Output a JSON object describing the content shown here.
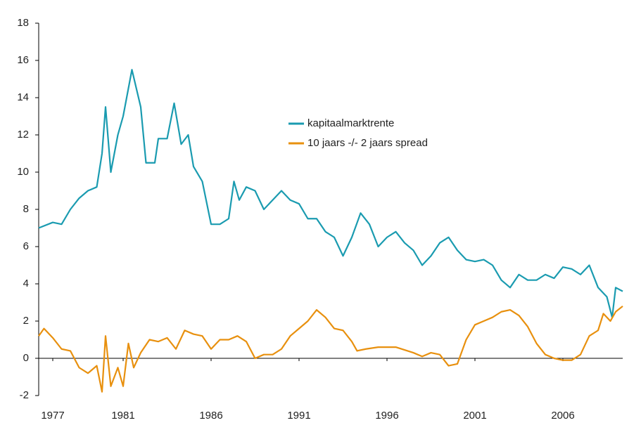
{
  "chart_data": {
    "type": "line",
    "xlim": [
      1976.2,
      2009.4
    ],
    "xticks": [
      1977,
      1981,
      1986,
      1991,
      1996,
      2001,
      2006
    ],
    "ylim": [
      -2,
      18
    ],
    "yticks": [
      -2,
      0,
      2,
      4,
      6,
      8,
      10,
      12,
      14,
      16,
      18
    ],
    "legend": "center",
    "series": [
      {
        "name": "kapitaalmarktrente",
        "color": "#1a9bb0",
        "x": [
          1976.2,
          1977,
          1977.5,
          1978,
          1978.5,
          1979,
          1979.5,
          1979.8,
          1980,
          1980.3,
          1980.7,
          1981,
          1981.5,
          1982,
          1982.3,
          1982.8,
          1983,
          1983.5,
          1983.9,
          1984.3,
          1984.7,
          1985,
          1985.5,
          1986,
          1986.5,
          1987,
          1987.3,
          1987.6,
          1988,
          1988.5,
          1989,
          1989.5,
          1990,
          1990.5,
          1991,
          1991.5,
          1992,
          1992.5,
          1993,
          1993.5,
          1994,
          1994.5,
          1995,
          1995.5,
          1996,
          1996.5,
          1997,
          1997.5,
          1998,
          1998.5,
          1999,
          1999.5,
          2000,
          2000.5,
          2001,
          2001.5,
          2002,
          2002.5,
          2003,
          2003.5,
          2004,
          2004.5,
          2005,
          2005.5,
          2006,
          2006.5,
          2007,
          2007.5,
          2008,
          2008.5,
          2008.8,
          2009,
          2009.4
        ],
        "values": [
          7.0,
          7.3,
          7.2,
          8.0,
          8.6,
          9.0,
          9.2,
          11,
          13.5,
          10,
          12,
          13,
          15.5,
          13.5,
          10.5,
          10.5,
          11.8,
          11.8,
          13.7,
          11.5,
          12,
          10.3,
          9.5,
          7.2,
          7.2,
          7.5,
          9.5,
          8.5,
          9.2,
          9,
          8,
          8.5,
          9,
          8.5,
          8.3,
          7.5,
          7.5,
          6.8,
          6.5,
          5.5,
          6.5,
          7.8,
          7.2,
          6,
          6.5,
          6.8,
          6.2,
          5.8,
          5.0,
          5.5,
          6.2,
          6.5,
          5.8,
          5.3,
          5.2,
          5.3,
          5.0,
          4.2,
          3.8,
          4.5,
          4.2,
          4.2,
          4.5,
          4.3,
          4.9,
          4.8,
          4.5,
          5.0,
          3.8,
          3.3,
          2.2,
          3.8,
          3.6
        ]
      },
      {
        "name": "10 jaars -/- 2 jaars spread",
        "color": "#e8900e",
        "x": [
          1976.2,
          1976.5,
          1977,
          1977.5,
          1978,
          1978.5,
          1979,
          1979.5,
          1979.8,
          1980,
          1980.3,
          1980.7,
          1981,
          1981.3,
          1981.6,
          1982,
          1982.5,
          1983,
          1983.5,
          1984,
          1984.5,
          1985,
          1985.5,
          1986,
          1986.5,
          1987,
          1987.5,
          1988,
          1988.5,
          1989,
          1989.5,
          1990,
          1990.5,
          1991,
          1991.5,
          1992,
          1992.5,
          1993,
          1993.5,
          1994,
          1994.3,
          1994.8,
          1995.5,
          1996.5,
          1997.5,
          1998,
          1998.5,
          1999,
          1999.5,
          2000,
          2000.5,
          2001,
          2001.5,
          2002,
          2002.5,
          2003,
          2003.5,
          2004,
          2004.5,
          2005,
          2005.5,
          2006,
          2006.5,
          2007,
          2007.5,
          2008,
          2008.3,
          2008.7,
          2009,
          2009.4
        ],
        "values": [
          1.2,
          1.6,
          1.1,
          0.5,
          0.4,
          -0.5,
          -0.8,
          -0.4,
          -1.8,
          1.2,
          -1.5,
          -0.5,
          -1.5,
          0.8,
          -0.5,
          0.3,
          1.0,
          0.9,
          1.1,
          0.5,
          1.5,
          1.3,
          1.2,
          0.5,
          1.0,
          1.0,
          1.2,
          0.9,
          0.0,
          0.2,
          0.2,
          0.5,
          1.2,
          1.6,
          2.0,
          2.6,
          2.2,
          1.6,
          1.5,
          0.9,
          0.4,
          0.5,
          0.6,
          0.6,
          0.3,
          0.1,
          0.3,
          0.2,
          -0.4,
          -0.3,
          1.0,
          1.8,
          2.0,
          2.2,
          2.5,
          2.6,
          2.3,
          1.7,
          0.8,
          0.2,
          0,
          -0.1,
          -0.1,
          0.2,
          1.2,
          1.5,
          2.4,
          2.0,
          2.5,
          2.8
        ]
      }
    ]
  }
}
